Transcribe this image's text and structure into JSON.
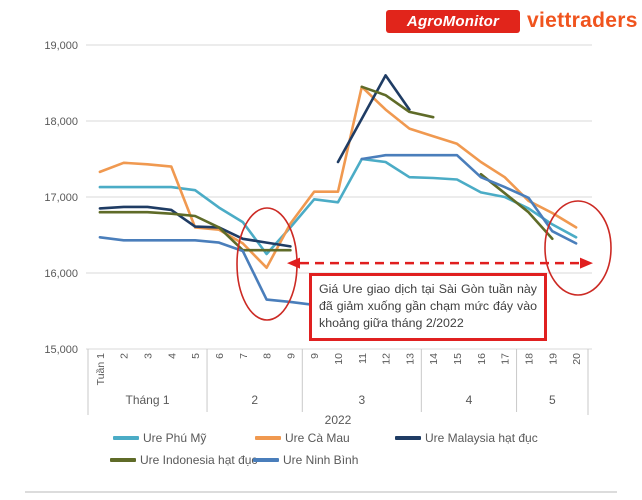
{
  "header": {
    "logo_agromonitor": "AgroMonitor",
    "logo_viettraders": "viettraders",
    "logo_bg_color": "#E1251B",
    "viettraders_color": "#F0541E"
  },
  "annotation": {
    "text": "Giá Ure giao dịch tại Sài Gòn tuần này đã giảm xuống gần chạm mức đáy vào khoảng giữa tháng 2/2022",
    "border_color": "#E02020",
    "arrow_color": "#E01F1F",
    "ellipse_color": "#CC2A24"
  },
  "chart_data": {
    "type": "line",
    "title": "",
    "xlabel": "",
    "ylabel": "",
    "ylim": [
      15000,
      19000
    ],
    "y_ticks": [
      "15,000",
      "16,000",
      "17,000",
      "18,000",
      "19,000"
    ],
    "y_tick_values": [
      15000,
      16000,
      17000,
      18000,
      19000
    ],
    "grid": true,
    "legend_position": "bottom",
    "x_labels": [
      "Tuần 1",
      "2",
      "3",
      "4",
      "5",
      "6",
      "7",
      "8",
      "9",
      "9",
      "10",
      "11",
      "12",
      "13",
      "14",
      "15",
      "16",
      "17",
      "18",
      "19",
      "20"
    ],
    "month_groups": [
      {
        "label": "Tháng 1",
        "span": 5
      },
      {
        "label": "2",
        "span": 4
      },
      {
        "label": "3",
        "span": 5
      },
      {
        "label": "4",
        "span": 4
      },
      {
        "label": "5",
        "span": 3
      }
    ],
    "year_label": "2022",
    "series": [
      {
        "name": "Ure Phú Mỹ",
        "color": "#4BACC6",
        "values": [
          17130,
          17130,
          17130,
          17130,
          17090,
          16860,
          16670,
          16250,
          16600,
          16970,
          16930,
          17500,
          17460,
          17260,
          17250,
          17230,
          17060,
          17000,
          16850,
          16640,
          16470
        ]
      },
      {
        "name": "Ure Cà Mau",
        "color": "#F09950",
        "values": [
          17330,
          17450,
          17430,
          17400,
          16600,
          16570,
          16390,
          16070,
          16650,
          17070,
          17070,
          18450,
          18150,
          17900,
          17800,
          17700,
          17460,
          17260,
          16950,
          16790,
          16600
        ]
      },
      {
        "name": "Ure Malaysia hạt đục",
        "color": "#1F3C64",
        "values": [
          16850,
          16870,
          16870,
          16830,
          16610,
          16600,
          16450,
          16400,
          16350,
          null,
          17460,
          18030,
          18600,
          18150,
          null,
          null,
          null,
          null,
          null,
          null,
          null
        ]
      },
      {
        "name": "Ure Indonesia hạt đục",
        "color": "#5F6B28",
        "values": [
          16800,
          16800,
          16800,
          16780,
          16750,
          16600,
          16300,
          16300,
          16300,
          null,
          null,
          18450,
          18340,
          18120,
          18050,
          null,
          17300,
          17050,
          16800,
          16450,
          null
        ]
      },
      {
        "name": "Ure Ninh Bình",
        "color": "#4A7EBB",
        "values": [
          16470,
          16430,
          16430,
          16430,
          16430,
          16400,
          16290,
          15650,
          15620,
          15580,
          null,
          17500,
          17550,
          17550,
          17550,
          17550,
          17260,
          17130,
          16990,
          16550,
          16390
        ]
      }
    ],
    "highlights": {
      "dashed_arrow_level": 16130,
      "ellipses": [
        {
          "weeks": "8-9",
          "note": "price bottom mid Feb 2022"
        },
        {
          "weeks": "19-20",
          "note": "current price near bottom"
        }
      ]
    }
  }
}
